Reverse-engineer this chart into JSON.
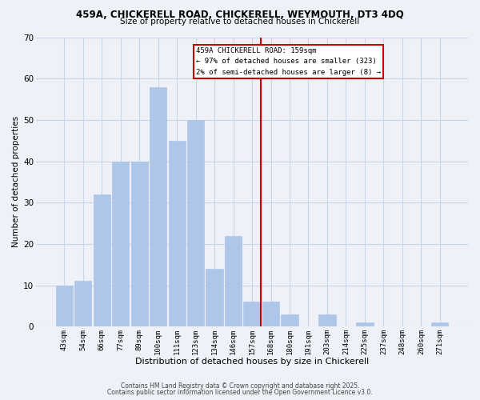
{
  "title": "459A, CHICKERELL ROAD, CHICKERELL, WEYMOUTH, DT3 4DQ",
  "subtitle": "Size of property relative to detached houses in Chickerell",
  "xlabel": "Distribution of detached houses by size in Chickerell",
  "ylabel": "Number of detached properties",
  "bar_labels": [
    "43sqm",
    "54sqm",
    "66sqm",
    "77sqm",
    "89sqm",
    "100sqm",
    "111sqm",
    "123sqm",
    "134sqm",
    "146sqm",
    "157sqm",
    "168sqm",
    "180sqm",
    "191sqm",
    "203sqm",
    "214sqm",
    "225sqm",
    "237sqm",
    "248sqm",
    "260sqm",
    "271sqm"
  ],
  "bar_values": [
    10,
    11,
    32,
    40,
    40,
    58,
    45,
    50,
    14,
    22,
    6,
    6,
    3,
    0,
    3,
    0,
    1,
    0,
    0,
    0,
    1
  ],
  "bar_color": "#aec6e8",
  "bar_edge_color": "#aec6e8",
  "grid_color": "#c8d4e8",
  "background_color": "#eef2f8",
  "vline_x_index": 10,
  "vline_color": "#cc0000",
  "annotation_text": "459A CHICKERELL ROAD: 159sqm\n← 97% of detached houses are smaller (323)\n2% of semi-detached houses are larger (8) →",
  "annotation_box_color": "#ffffff",
  "annotation_box_edge": "#cc0000",
  "ylim": [
    0,
    70
  ],
  "yticks": [
    0,
    10,
    20,
    30,
    40,
    50,
    60,
    70
  ],
  "footer1": "Contains HM Land Registry data © Crown copyright and database right 2025.",
  "footer2": "Contains public sector information licensed under the Open Government Licence v3.0."
}
